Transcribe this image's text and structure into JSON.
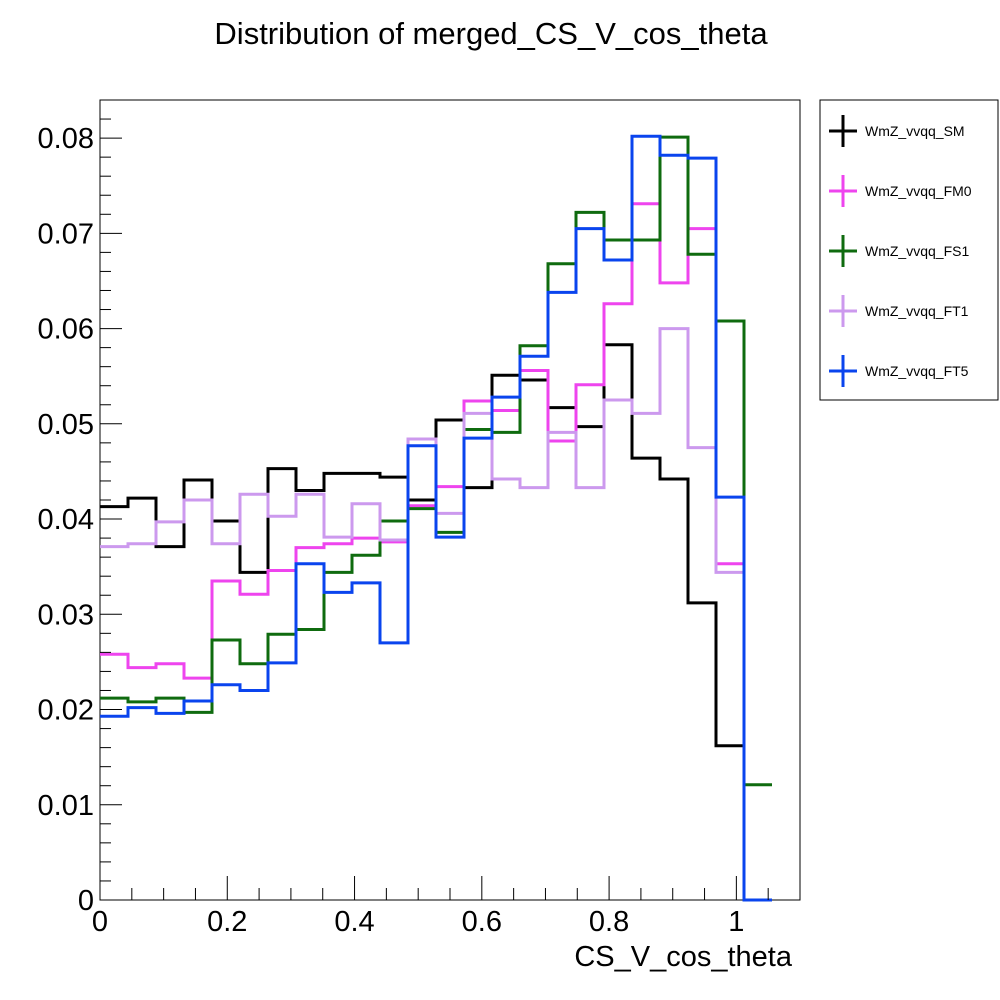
{
  "chart_data": {
    "type": "histogram",
    "title": "Distribution of merged_CS_V_cos_theta",
    "xlabel": "CS_V_cos_theta",
    "ylabel": "",
    "xlim": [
      0,
      1.1
    ],
    "ylim": [
      0,
      0.084
    ],
    "grid": false,
    "legend_position": "top-right outside",
    "bin_width": 0.044,
    "bin_edges_start": 0,
    "x_ticks": [
      "0",
      "0.2",
      "0.4",
      "0.6",
      "0.8",
      "1"
    ],
    "x_tick_values": [
      0,
      0.2,
      0.4,
      0.6,
      0.8,
      1
    ],
    "y_ticks": [
      "0",
      "0.01",
      "0.02",
      "0.03",
      "0.04",
      "0.05",
      "0.06",
      "0.07",
      "0.08"
    ],
    "y_tick_values": [
      0,
      0.01,
      0.02,
      0.03,
      0.04,
      0.05,
      0.06,
      0.07,
      0.08
    ],
    "series": [
      {
        "name": "WmZ_vvqq_SM",
        "color": "#000000",
        "values": [
          0.0413,
          0.0422,
          0.0371,
          0.0441,
          0.0398,
          0.0344,
          0.0453,
          0.043,
          0.0448,
          0.0448,
          0.0444,
          0.042,
          0.0504,
          0.0433,
          0.0551,
          0.0546,
          0.0517,
          0.0497,
          0.0583,
          0.0464,
          0.0442,
          0.0312,
          0.0162,
          0
        ]
      },
      {
        "name": "WmZ_vvqq_FM0",
        "color": "#ee44ee",
        "values": [
          0.0258,
          0.0244,
          0.0248,
          0.0233,
          0.0335,
          0.0321,
          0.0346,
          0.037,
          0.0374,
          0.038,
          0.0376,
          0.0414,
          0.0434,
          0.0524,
          0.0514,
          0.0556,
          0.0482,
          0.0541,
          0.0626,
          0.0731,
          0.0648,
          0.0705,
          0.0353,
          0
        ]
      },
      {
        "name": "WmZ_vvqq_FS1",
        "color": "#0f6b0f",
        "values": [
          0.0212,
          0.0208,
          0.0212,
          0.0197,
          0.0273,
          0.0248,
          0.0279,
          0.0284,
          0.0344,
          0.0362,
          0.0398,
          0.0411,
          0.0386,
          0.0494,
          0.0491,
          0.0582,
          0.0668,
          0.0722,
          0.0693,
          0.0693,
          0.0801,
          0.0678,
          0.0608,
          0.0121
        ]
      },
      {
        "name": "WmZ_vvqq_FT1",
        "color": "#cc99ee",
        "values": [
          0.0371,
          0.0374,
          0.0397,
          0.042,
          0.0374,
          0.0426,
          0.0403,
          0.0426,
          0.0381,
          0.0416,
          0.0378,
          0.0484,
          0.0406,
          0.0511,
          0.0442,
          0.0433,
          0.0491,
          0.0433,
          0.0525,
          0.0511,
          0.06,
          0.0475,
          0.0344,
          0
        ]
      },
      {
        "name": "WmZ_vvqq_FT5",
        "color": "#0a44ee",
        "values": [
          0.0193,
          0.0202,
          0.0196,
          0.0209,
          0.0226,
          0.022,
          0.0249,
          0.0353,
          0.0323,
          0.0333,
          0.027,
          0.0477,
          0.0381,
          0.0485,
          0.0528,
          0.0571,
          0.0638,
          0.0705,
          0.0672,
          0.0802,
          0.0782,
          0.0779,
          0.0423,
          0
        ]
      }
    ]
  }
}
